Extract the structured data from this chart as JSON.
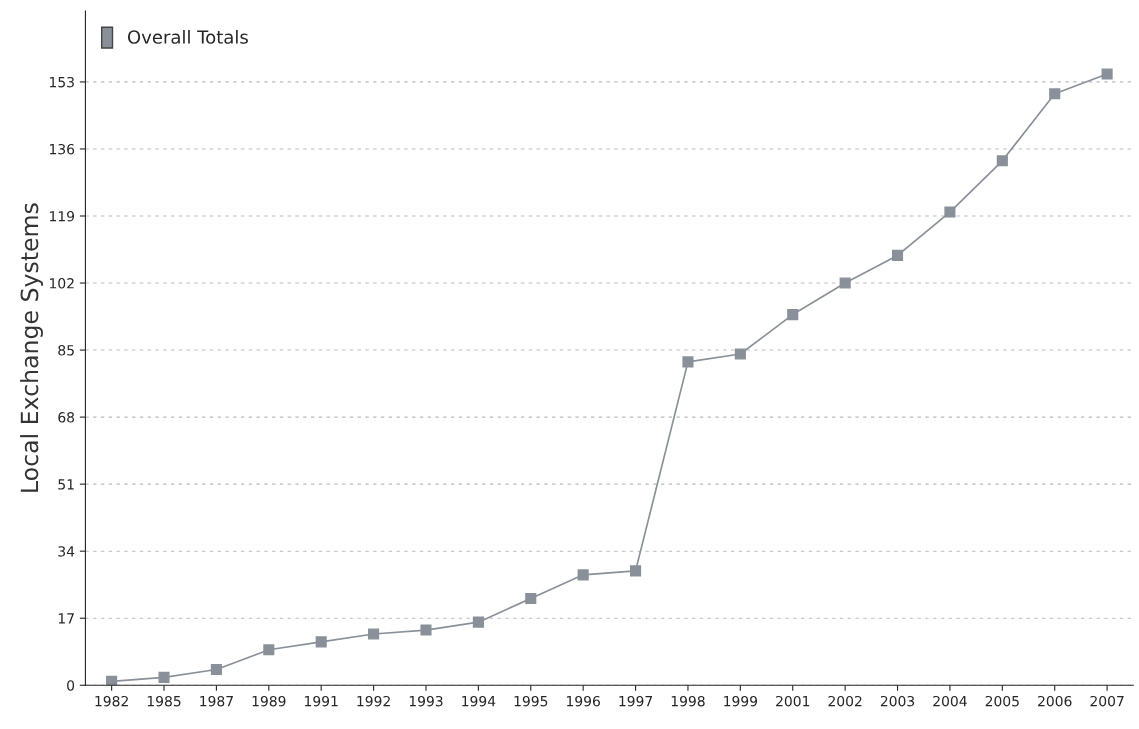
{
  "chart_data": {
    "type": "line",
    "ylabel": "Local Exchange Systems",
    "categories": [
      "1982",
      "1985",
      "1987",
      "1989",
      "1991",
      "1992",
      "1993",
      "1994",
      "1995",
      "1996",
      "1997",
      "1998",
      "1999",
      "2001",
      "2002",
      "2003",
      "2004",
      "2005",
      "2006",
      "2007"
    ],
    "series": [
      {
        "name": "Overall Totals",
        "color": "#8a9099",
        "values": [
          1,
          2,
          4,
          9,
          11,
          13,
          14,
          16,
          22,
          28,
          29,
          82,
          84,
          94,
          102,
          109,
          120,
          133,
          150,
          155
        ]
      }
    ],
    "ylim": [
      0,
      171
    ],
    "yticks": [
      0,
      17,
      34,
      51,
      68,
      85,
      102,
      119,
      136,
      153
    ],
    "grid": "y",
    "legend": "top left",
    "marker": "square",
    "line_style": "solid"
  }
}
